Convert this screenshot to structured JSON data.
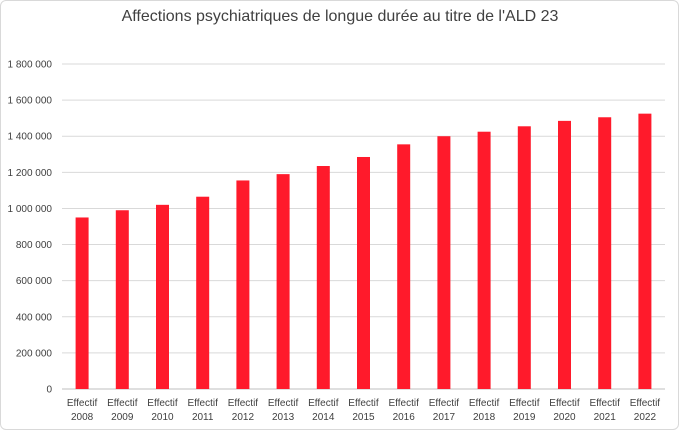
{
  "chart_data": {
    "type": "bar",
    "title": "Affections psychiatriques de longue durée au titre de l'ALD 23",
    "xlabel": "",
    "ylabel": "",
    "ylim": [
      0,
      1800000
    ],
    "yticks": [
      0,
      200000,
      400000,
      600000,
      800000,
      1000000,
      1200000,
      1400000,
      1600000,
      1800000
    ],
    "ytick_labels": [
      "0",
      "200 000",
      "400 000",
      "600 000",
      "800 000",
      "1 000 000",
      "1 200 000",
      "1 400 000",
      "1 600 000",
      "1 800 000"
    ],
    "categories": [
      [
        "Effectif",
        "2008"
      ],
      [
        "Effectif",
        "2009"
      ],
      [
        "Effectif",
        "2010"
      ],
      [
        "Effectif",
        "2011"
      ],
      [
        "Effectif",
        "2012"
      ],
      [
        "Effectif",
        "2013"
      ],
      [
        "Effectif",
        "2014"
      ],
      [
        "Effectif",
        "2015"
      ],
      [
        "Effectif",
        "2016"
      ],
      [
        "Effectif",
        "2017"
      ],
      [
        "Effectif",
        "2018"
      ],
      [
        "Effectif",
        "2019"
      ],
      [
        "Effectif",
        "2020"
      ],
      [
        "Effectif",
        "2021"
      ],
      [
        "Effectif",
        "2022"
      ]
    ],
    "values": [
      950000,
      990000,
      1020000,
      1065000,
      1155000,
      1190000,
      1235000,
      1285000,
      1355000,
      1400000,
      1425000,
      1455000,
      1485000,
      1505000,
      1525000
    ],
    "bar_color": "#ff1a2b",
    "grid": true,
    "legend": "none"
  }
}
